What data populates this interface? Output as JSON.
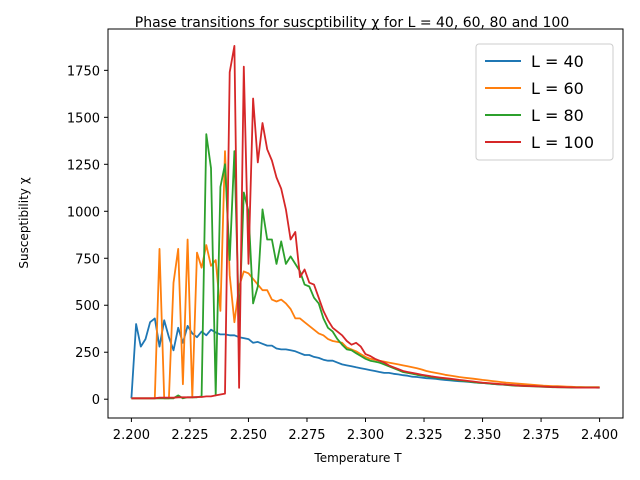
{
  "chart_data": {
    "type": "line",
    "title": "Phase transitions for suscptibility χ for L = 40, 60, 80 and 100",
    "xlabel": "Temperature T",
    "ylabel": "Susceptibility χ",
    "xlim": [
      2.19,
      2.41
    ],
    "ylim": [
      -100,
      1970
    ],
    "xticks": [
      "2.200",
      "2.225",
      "2.250",
      "2.275",
      "2.300",
      "2.325",
      "2.350",
      "2.375",
      "2.400"
    ],
    "yticks": [
      "0",
      "250",
      "500",
      "750",
      "1000",
      "1250",
      "1500",
      "1750"
    ],
    "grid": false,
    "legend_position": "top-right",
    "series": [
      {
        "name": "L = 40",
        "color": "#1f77b4",
        "x": [
          2.2,
          2.202,
          2.204,
          2.206,
          2.208,
          2.21,
          2.212,
          2.214,
          2.216,
          2.218,
          2.22,
          2.222,
          2.224,
          2.226,
          2.228,
          2.23,
          2.232,
          2.234,
          2.236,
          2.238,
          2.24,
          2.242,
          2.244,
          2.246,
          2.248,
          2.25,
          2.252,
          2.254,
          2.256,
          2.258,
          2.26,
          2.262,
          2.264,
          2.266,
          2.268,
          2.27,
          2.272,
          2.274,
          2.276,
          2.278,
          2.28,
          2.282,
          2.284,
          2.286,
          2.288,
          2.29,
          2.292,
          2.294,
          2.296,
          2.298,
          2.3,
          2.302,
          2.304,
          2.306,
          2.308,
          2.31,
          2.312,
          2.314,
          2.316,
          2.318,
          2.32,
          2.322,
          2.324,
          2.326,
          2.328,
          2.33,
          2.332,
          2.334,
          2.336,
          2.338,
          2.34,
          2.342,
          2.344,
          2.346,
          2.348,
          2.35,
          2.352,
          2.354,
          2.356,
          2.358,
          2.36,
          2.362,
          2.364,
          2.366,
          2.368,
          2.37,
          2.372,
          2.374,
          2.376,
          2.378,
          2.38,
          2.382,
          2.384,
          2.386,
          2.388,
          2.39,
          2.392,
          2.394,
          2.396,
          2.398,
          2.4
        ],
        "y": [
          5,
          400,
          280,
          320,
          410,
          430,
          280,
          420,
          330,
          260,
          380,
          300,
          390,
          350,
          330,
          360,
          340,
          370,
          355,
          345,
          345,
          340,
          340,
          330,
          325,
          320,
          300,
          305,
          295,
          285,
          285,
          270,
          265,
          265,
          260,
          255,
          245,
          235,
          235,
          225,
          220,
          210,
          205,
          205,
          195,
          185,
          180,
          175,
          170,
          165,
          160,
          155,
          150,
          145,
          140,
          140,
          135,
          132,
          128,
          125,
          120,
          118,
          115,
          112,
          110,
          108,
          105,
          102,
          100,
          98,
          96,
          94,
          92,
          90,
          88,
          86,
          84,
          82,
          80,
          78,
          76,
          75,
          74,
          73,
          72,
          71,
          70,
          69,
          68,
          67,
          66,
          65,
          65,
          64,
          64,
          63,
          63,
          62,
          62,
          62,
          61
        ]
      },
      {
        "name": "L = 60",
        "color": "#ff7f0e",
        "x": [
          2.2,
          2.202,
          2.204,
          2.206,
          2.208,
          2.21,
          2.212,
          2.214,
          2.216,
          2.218,
          2.22,
          2.222,
          2.224,
          2.226,
          2.228,
          2.23,
          2.232,
          2.234,
          2.236,
          2.238,
          2.24,
          2.242,
          2.244,
          2.246,
          2.248,
          2.25,
          2.252,
          2.254,
          2.256,
          2.258,
          2.26,
          2.262,
          2.264,
          2.266,
          2.268,
          2.27,
          2.272,
          2.274,
          2.276,
          2.278,
          2.28,
          2.282,
          2.284,
          2.286,
          2.288,
          2.29,
          2.292,
          2.294,
          2.296,
          2.298,
          2.3,
          2.302,
          2.304,
          2.306,
          2.308,
          2.31,
          2.312,
          2.314,
          2.316,
          2.318,
          2.32,
          2.322,
          2.324,
          2.326,
          2.328,
          2.33,
          2.332,
          2.334,
          2.336,
          2.338,
          2.34,
          2.342,
          2.344,
          2.346,
          2.348,
          2.35,
          2.352,
          2.354,
          2.356,
          2.358,
          2.36,
          2.362,
          2.364,
          2.366,
          2.368,
          2.37,
          2.372,
          2.374,
          2.376,
          2.378,
          2.38,
          2.382,
          2.384,
          2.386,
          2.388,
          2.39,
          2.392,
          2.394,
          2.396,
          2.398,
          2.4
        ],
        "y": [
          5,
          5,
          5,
          5,
          5,
          5,
          800,
          5,
          5,
          620,
          800,
          80,
          850,
          10,
          780,
          700,
          820,
          710,
          740,
          470,
          1320,
          660,
          410,
          600,
          680,
          670,
          640,
          610,
          580,
          580,
          530,
          520,
          530,
          510,
          480,
          430,
          430,
          410,
          390,
          370,
          350,
          340,
          320,
          310,
          305,
          300,
          275,
          265,
          255,
          240,
          225,
          215,
          210,
          205,
          200,
          195,
          190,
          185,
          180,
          175,
          170,
          165,
          158,
          150,
          145,
          140,
          135,
          130,
          126,
          122,
          118,
          115,
          112,
          109,
          106,
          103,
          100,
          97,
          94,
          91,
          88,
          86,
          84,
          82,
          80,
          78,
          76,
          74,
          72,
          71,
          70,
          69,
          68,
          67,
          66,
          65,
          65,
          64,
          64,
          64,
          64
        ]
      },
      {
        "name": "L = 80",
        "color": "#2ca02c",
        "x": [
          2.2,
          2.202,
          2.204,
          2.206,
          2.208,
          2.21,
          2.212,
          2.214,
          2.216,
          2.218,
          2.22,
          2.222,
          2.224,
          2.226,
          2.228,
          2.23,
          2.232,
          2.234,
          2.236,
          2.238,
          2.24,
          2.242,
          2.244,
          2.246,
          2.248,
          2.25,
          2.252,
          2.254,
          2.256,
          2.258,
          2.26,
          2.262,
          2.264,
          2.266,
          2.268,
          2.27,
          2.272,
          2.274,
          2.276,
          2.278,
          2.28,
          2.282,
          2.284,
          2.286,
          2.288,
          2.29,
          2.292,
          2.294,
          2.296,
          2.298,
          2.3,
          2.302,
          2.304,
          2.306,
          2.308,
          2.31,
          2.312,
          2.314,
          2.316,
          2.318,
          2.32,
          2.322,
          2.324,
          2.326,
          2.328,
          2.33,
          2.332,
          2.334,
          2.336,
          2.338,
          2.34,
          2.342,
          2.344,
          2.346,
          2.348,
          2.35,
          2.352,
          2.354,
          2.356,
          2.358,
          2.36,
          2.362,
          2.364,
          2.366,
          2.368,
          2.37,
          2.372,
          2.374,
          2.376,
          2.378,
          2.38,
          2.382,
          2.384,
          2.386,
          2.388,
          2.39,
          2.392,
          2.394,
          2.396,
          2.398,
          2.4
        ],
        "y": [
          5,
          5,
          5,
          5,
          5,
          5,
          5,
          5,
          5,
          5,
          20,
          5,
          10,
          10,
          10,
          15,
          1410,
          1230,
          20,
          1130,
          1250,
          740,
          1320,
          400,
          1100,
          1000,
          510,
          600,
          1010,
          850,
          850,
          720,
          840,
          720,
          760,
          720,
          680,
          610,
          600,
          540,
          510,
          430,
          380,
          360,
          320,
          290,
          265,
          260,
          245,
          230,
          215,
          205,
          200,
          195,
          185,
          175,
          165,
          155,
          145,
          140,
          135,
          130,
          126,
          122,
          118,
          115,
          112,
          109,
          106,
          103,
          100,
          97,
          94,
          91,
          88,
          86,
          84,
          82,
          80,
          78,
          76,
          74,
          72,
          71,
          70,
          69,
          68,
          67,
          66,
          65,
          64,
          64,
          63,
          63,
          62,
          62,
          62,
          62,
          62,
          62,
          62
        ]
      },
      {
        "name": "L = 100",
        "color": "#d62728",
        "x": [
          2.2,
          2.202,
          2.204,
          2.206,
          2.208,
          2.21,
          2.212,
          2.214,
          2.216,
          2.218,
          2.22,
          2.222,
          2.224,
          2.226,
          2.228,
          2.23,
          2.232,
          2.234,
          2.236,
          2.238,
          2.24,
          2.242,
          2.244,
          2.246,
          2.248,
          2.25,
          2.252,
          2.254,
          2.256,
          2.258,
          2.26,
          2.262,
          2.264,
          2.266,
          2.268,
          2.27,
          2.272,
          2.274,
          2.276,
          2.278,
          2.28,
          2.282,
          2.284,
          2.286,
          2.288,
          2.29,
          2.292,
          2.294,
          2.296,
          2.298,
          2.3,
          2.302,
          2.304,
          2.306,
          2.308,
          2.31,
          2.312,
          2.314,
          2.316,
          2.318,
          2.32,
          2.322,
          2.324,
          2.326,
          2.328,
          2.33,
          2.332,
          2.334,
          2.336,
          2.338,
          2.34,
          2.342,
          2.344,
          2.346,
          2.348,
          2.35,
          2.352,
          2.354,
          2.356,
          2.358,
          2.36,
          2.362,
          2.364,
          2.366,
          2.368,
          2.37,
          2.372,
          2.374,
          2.376,
          2.378,
          2.38,
          2.382,
          2.384,
          2.386,
          2.388,
          2.39,
          2.392,
          2.394,
          2.396,
          2.398,
          2.4
        ],
        "y": [
          5,
          5,
          5,
          5,
          5,
          5,
          8,
          8,
          8,
          8,
          10,
          10,
          10,
          10,
          12,
          12,
          15,
          15,
          20,
          25,
          30,
          1740,
          1880,
          60,
          1770,
          720,
          1600,
          1260,
          1470,
          1330,
          1270,
          1180,
          1120,
          1010,
          850,
          890,
          650,
          690,
          620,
          610,
          540,
          470,
          420,
          380,
          360,
          340,
          310,
          290,
          300,
          280,
          240,
          230,
          215,
          205,
          195,
          180,
          170,
          160,
          150,
          145,
          140,
          135,
          130,
          126,
          122,
          118,
          115,
          112,
          109,
          106,
          103,
          100,
          97,
          94,
          91,
          88,
          86,
          84,
          82,
          80,
          78,
          76,
          74,
          72,
          71,
          70,
          69,
          68,
          67,
          66,
          65,
          64,
          64,
          63,
          63,
          62,
          62,
          62,
          62,
          62,
          62
        ]
      }
    ]
  }
}
